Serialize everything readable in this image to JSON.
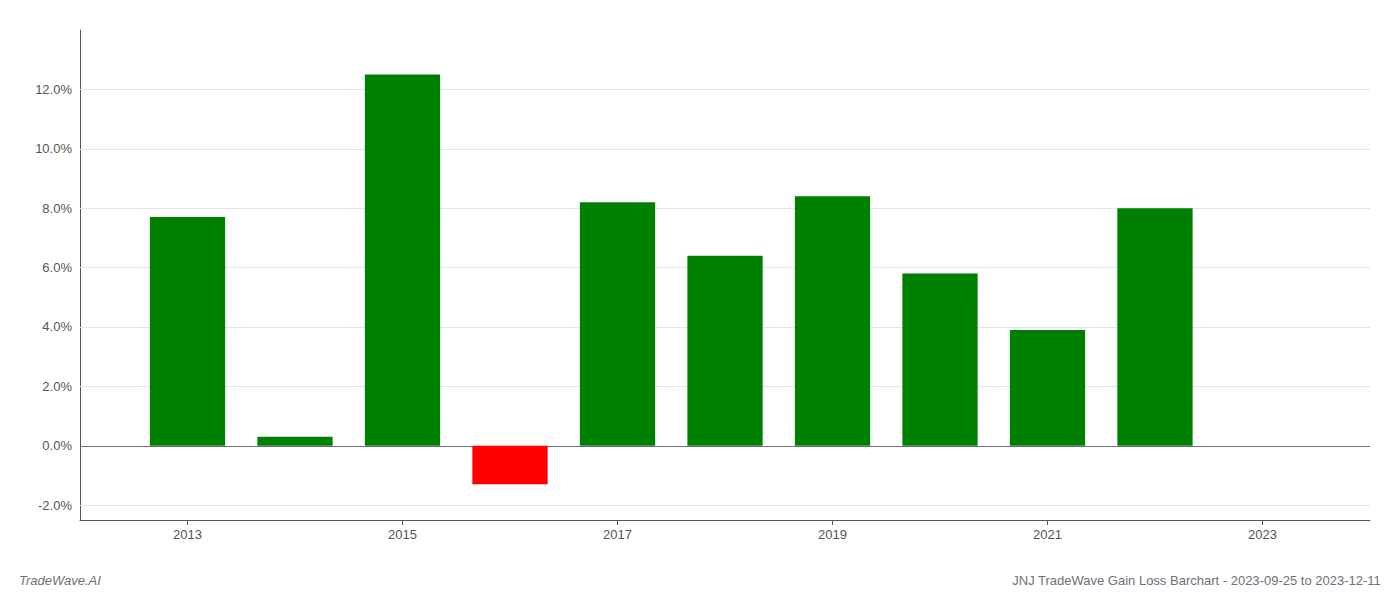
{
  "chart_data": {
    "type": "bar",
    "x": [
      2013,
      2014,
      2015,
      2016,
      2017,
      2018,
      2019,
      2020,
      2021,
      2022,
      2023
    ],
    "values": [
      0.077,
      0.003,
      0.125,
      -0.013,
      0.082,
      0.064,
      0.084,
      0.058,
      0.039,
      0.08,
      0.0
    ],
    "colors": [
      "#008000",
      "#008000",
      "#008000",
      "#ff0000",
      "#008000",
      "#008000",
      "#008000",
      "#008000",
      "#008000",
      "#008000",
      "#008000"
    ],
    "xlim": [
      2012.0,
      2024.0
    ],
    "xticks": [
      2013,
      2015,
      2017,
      2019,
      2021,
      2023
    ],
    "ylim": [
      -0.025,
      0.14
    ],
    "yticks": [
      {
        "value": -0.02,
        "label": "-2.0%"
      },
      {
        "value": 0.0,
        "label": "0.0%"
      },
      {
        "value": 0.02,
        "label": "2.0%"
      },
      {
        "value": 0.04,
        "label": "4.0%"
      },
      {
        "value": 0.06,
        "label": "6.0%"
      },
      {
        "value": 0.08,
        "label": "8.0%"
      },
      {
        "value": 0.1,
        "label": "10.0%"
      },
      {
        "value": 0.12,
        "label": "12.0%"
      }
    ],
    "grid": true,
    "annotations": [
      "TradeWave.AI",
      "JNJ TradeWave Gain Loss Barchart - 2023-09-25 to 2023-12-11"
    ]
  }
}
